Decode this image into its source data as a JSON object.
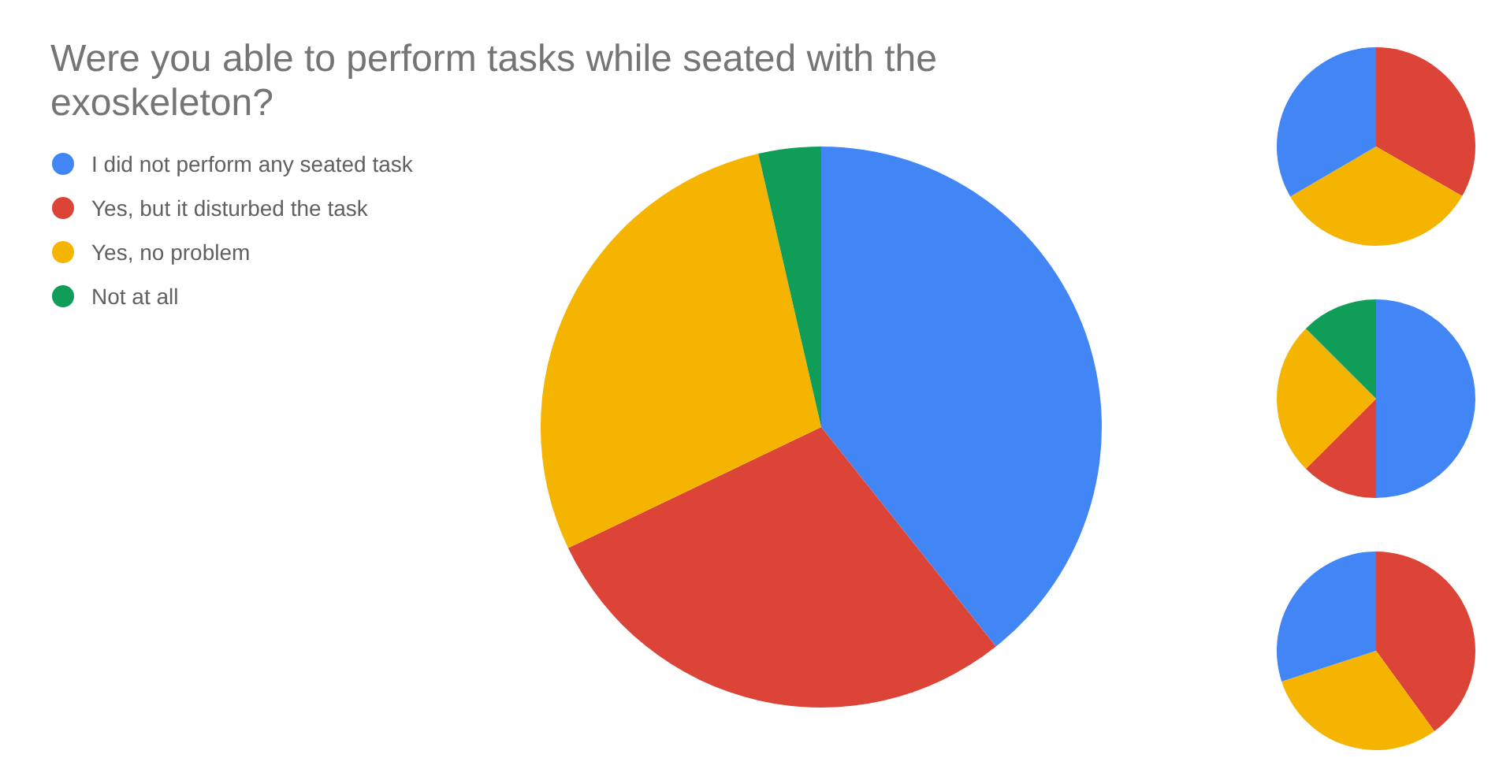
{
  "chart_data": [
    {
      "type": "pie",
      "title": "Were you able to perform tasks while seated with the exoskeleton?",
      "legend": "top left",
      "categories": [
        "I did not perform any seated task",
        "Yes, but it disturbed the task",
        "Yes, no problem",
        "Not at all"
      ],
      "values": [
        39.3,
        28.6,
        28.5,
        3.6
      ],
      "colors": [
        "#4285f4",
        "#db4437",
        "#f4b400",
        "#0f9d58"
      ]
    },
    {
      "type": "pie",
      "categories": [
        null,
        null,
        null
      ],
      "values": [
        33.3,
        33.3,
        33.4
      ],
      "colors": [
        "#db4437",
        "#f4b400",
        "#4285f4"
      ]
    },
    {
      "type": "pie",
      "categories": [
        null,
        null,
        null,
        null
      ],
      "values": [
        50,
        12.5,
        25,
        12.5
      ],
      "colors": [
        "#4285f4",
        "#db4437",
        "#f4b400",
        "#0f9d58"
      ]
    },
    {
      "type": "pie",
      "categories": [
        null,
        null,
        null
      ],
      "values": [
        40,
        30,
        30
      ],
      "colors": [
        "#db4437",
        "#f4b400",
        "#4285f4"
      ]
    }
  ]
}
